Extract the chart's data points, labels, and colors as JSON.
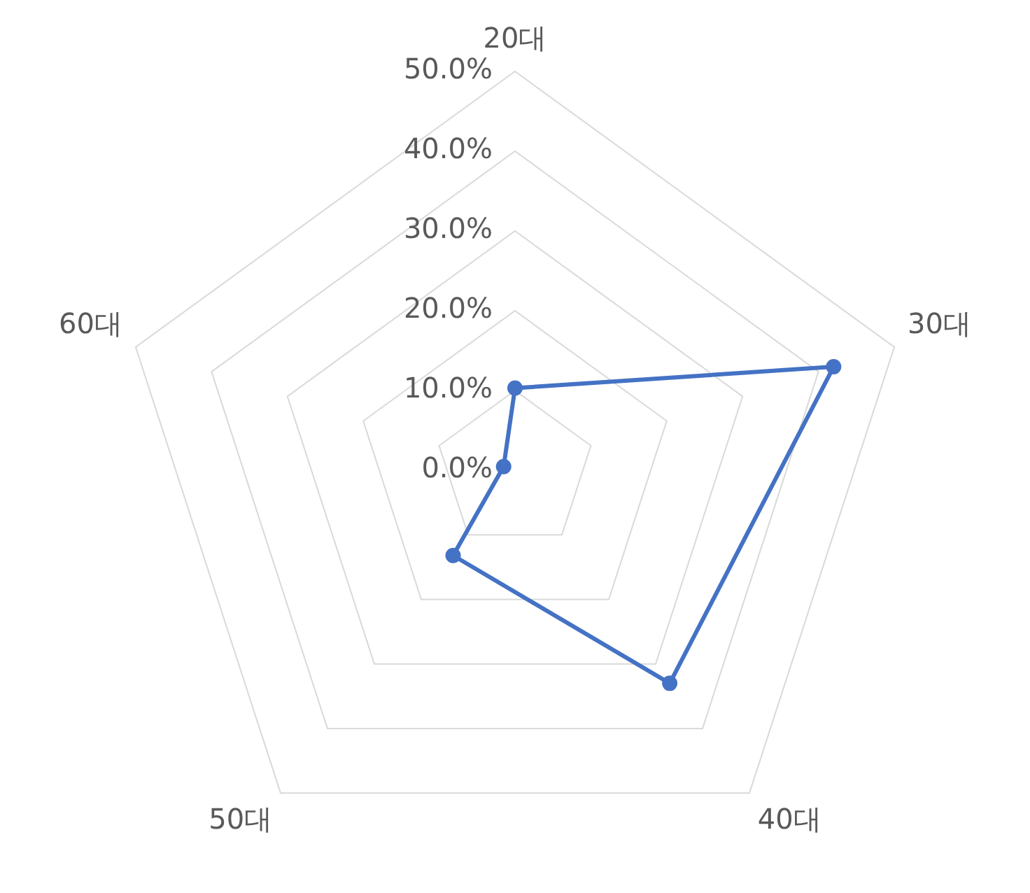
{
  "chart_data": {
    "type": "radar",
    "categories": [
      "20대",
      "30대",
      "40대",
      "50대",
      "60대"
    ],
    "series": [
      {
        "color": "#4472c4",
        "values": [
          10.3,
          42,
          33,
          13.2,
          1.5
        ]
      }
    ],
    "ylim": [
      0,
      50
    ],
    "yticks": [
      {
        "value": 0,
        "label": "0.0%"
      },
      {
        "value": 10,
        "label": "10.0%"
      },
      {
        "value": 20,
        "label": "20.0%"
      },
      {
        "value": 30,
        "label": "30.0%"
      },
      {
        "value": 40,
        "label": "40.0%"
      },
      {
        "value": 50,
        "label": "50.0%"
      }
    ],
    "grid": true,
    "legend": false,
    "marker": "circle",
    "line_style": "solid"
  }
}
